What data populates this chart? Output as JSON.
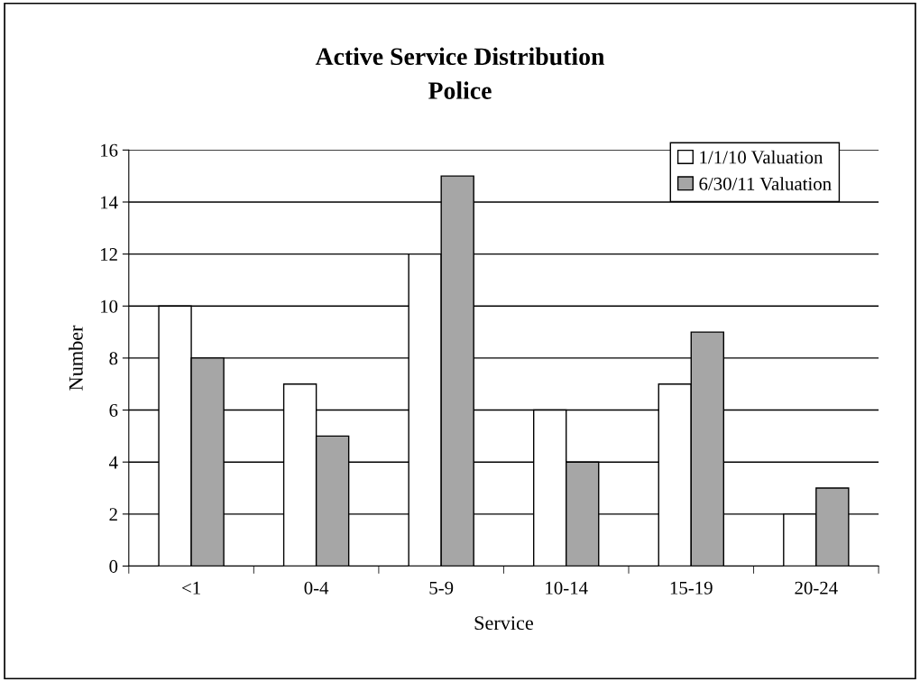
{
  "chart_data": {
    "type": "bar",
    "title": "Active Service Distribution",
    "subtitle": "Police",
    "xlabel": "Service",
    "ylabel": "Number",
    "categories": [
      "<1",
      "0-4",
      "5-9",
      "10-14",
      "15-19",
      "20-24"
    ],
    "series": [
      {
        "name": "1/1/10 Valuation",
        "color": "#ffffff",
        "values": [
          10,
          7,
          12,
          6,
          7,
          2
        ]
      },
      {
        "name": "6/30/11 Valuation",
        "color": "#a6a6a6",
        "values": [
          8,
          5,
          15,
          4,
          9,
          3
        ]
      }
    ],
    "ylim": [
      0,
      16
    ],
    "yticks": [
      0,
      2,
      4,
      6,
      8,
      10,
      12,
      14,
      16
    ],
    "grid": "y",
    "legend": "top right"
  }
}
